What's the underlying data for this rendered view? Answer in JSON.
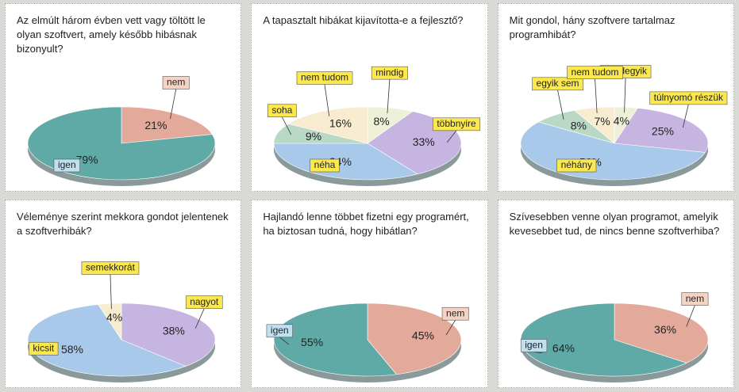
{
  "chart_data": [
    {
      "type": "pie",
      "title": "Az elmúlt három évben vett vagy töltött le olyan szoftvert, amely később hibásnak bizonyult?",
      "categories": [
        "nem",
        "igen"
      ],
      "values": [
        21,
        79
      ],
      "value_labels": [
        "21%",
        "79%"
      ],
      "colors": [
        "#e3a99a",
        "#5fa9a6"
      ],
      "label_colors": [
        "#f6d2c2",
        "#bfe0f0"
      ]
    },
    {
      "type": "pie",
      "title": "A tapasztalt hibákat kijavította-e a fejlesztő?",
      "categories": [
        "mindig",
        "többnyire",
        "néha",
        "soha",
        "nem tudom"
      ],
      "values": [
        8,
        33,
        34,
        9,
        16
      ],
      "value_labels": [
        "8%",
        "33%",
        "34%",
        "9%",
        "16%"
      ],
      "colors": [
        "#eef0d8",
        "#c6b5e0",
        "#a9c9ea",
        "#b9d9c6",
        "#f7ecd0"
      ],
      "label_colors": [
        "#fbe84c",
        "#fbe84c",
        "#fbe84c",
        "#fbe84c",
        "#fbe84c"
      ]
    },
    {
      "type": "pie",
      "title": "Mit gondol, hány szoftvere tartalmaz programhibát?",
      "categories": [
        "mindegyik",
        "túlnyomó részük",
        "néhány",
        "egyik sem",
        "nem tudom"
      ],
      "values": [
        4,
        25,
        56,
        8,
        7
      ],
      "value_labels": [
        "4%",
        "25%",
        "56%",
        "8%",
        "7%"
      ],
      "colors": [
        "#eef0d8",
        "#c6b5e0",
        "#a9c9ea",
        "#b9d9c6",
        "#f7ecd0"
      ],
      "label_colors": [
        "#fbe84c",
        "#fbe84c",
        "#fbe84c",
        "#fbe84c",
        "#fbe84c"
      ]
    },
    {
      "type": "pie",
      "title": "Véleménye szerint mekkora gondot jelentenek a szoftverhibák?",
      "categories": [
        "nagyot",
        "kicsit",
        "semekkorát"
      ],
      "values": [
        38,
        58,
        4
      ],
      "value_labels": [
        "38%",
        "58%",
        "4%"
      ],
      "colors": [
        "#c6b5e0",
        "#a9c9ea",
        "#f7ecd0"
      ],
      "label_colors": [
        "#fbe84c",
        "#fbe84c",
        "#fbe84c"
      ]
    },
    {
      "type": "pie",
      "title": "Hajlandó lenne többet fizetni egy programért, ha biztosan tudná, hogy hibátlan?",
      "categories": [
        "nem",
        "igen"
      ],
      "values": [
        45,
        55
      ],
      "value_labels": [
        "45%",
        "55%"
      ],
      "colors": [
        "#e3a99a",
        "#5fa9a6"
      ],
      "label_colors": [
        "#f6d2c2",
        "#bfe0f0"
      ]
    },
    {
      "type": "pie",
      "title": "Szívesebben venne olyan programot, amelyik kevesebbet tud, de nincs benne szoftverhiba?",
      "categories": [
        "nem",
        "igen"
      ],
      "values": [
        36,
        64
      ],
      "value_labels": [
        "36%",
        "64%"
      ],
      "colors": [
        "#e3a99a",
        "#5fa9a6"
      ],
      "label_colors": [
        "#f6d2c2",
        "#bfe0f0"
      ]
    }
  ]
}
